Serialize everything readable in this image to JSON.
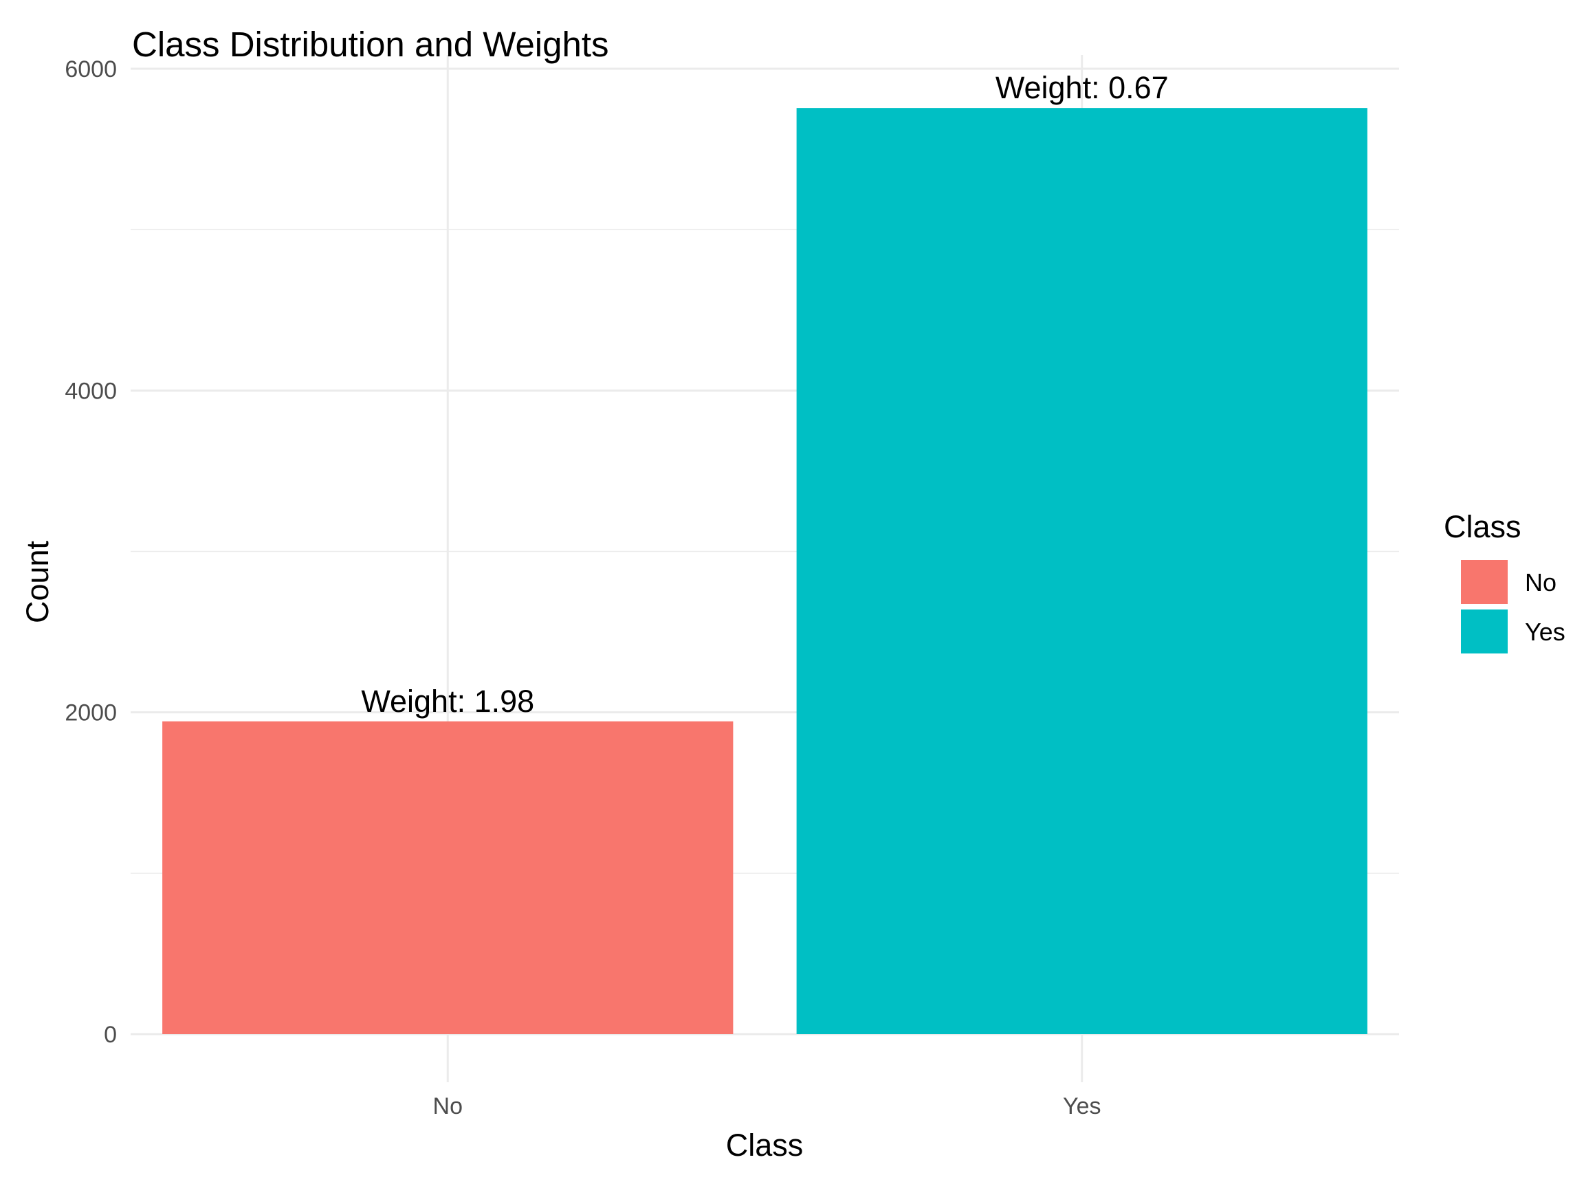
{
  "chart_data": {
    "type": "bar",
    "title": "Class Distribution and Weights",
    "xlabel": "Class",
    "ylabel": "Count",
    "categories": [
      "No",
      "Yes"
    ],
    "values": [
      1944,
      5756
    ],
    "bar_labels": [
      "Weight: 1.98",
      "Weight: 0.67"
    ],
    "colors": [
      "#f8766d",
      "#00bfc4"
    ],
    "ylim": [
      0,
      6000
    ],
    "yticks": [
      0,
      2000,
      4000,
      6000
    ],
    "grid": true,
    "legend": {
      "title": "Class",
      "placement": "right",
      "entries": [
        {
          "label": "No",
          "color": "#f8766d"
        },
        {
          "label": "Yes",
          "color": "#00bfc4"
        }
      ]
    }
  }
}
